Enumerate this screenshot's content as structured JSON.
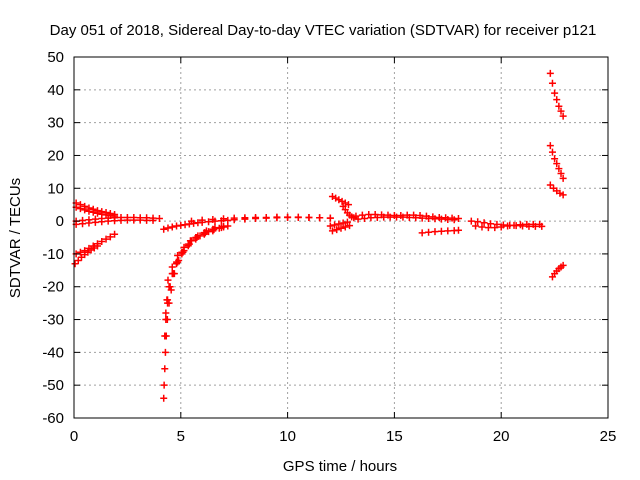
{
  "chart_data": {
    "type": "scatter",
    "title": "Day 051 of 2018, Sidereal Day-to-day VTEC variation (SDTVAR) for receiver p121",
    "xlabel": "GPS time / hours",
    "ylabel": "SDTVAR / TECUs",
    "xlim": [
      0,
      25
    ],
    "ylim": [
      -60,
      50
    ],
    "xticks": [
      0,
      5,
      10,
      15,
      20,
      25
    ],
    "yticks": [
      -60,
      -50,
      -40,
      -30,
      -20,
      -10,
      0,
      10,
      20,
      30,
      40,
      50
    ],
    "xtick_labels": [
      "0",
      "5",
      "10",
      "15",
      "20",
      "25"
    ],
    "ytick_labels": [
      "-60",
      "-50",
      "-40",
      "-30",
      "-20",
      "-10",
      "0",
      "10",
      "20",
      "30",
      "40",
      "50"
    ],
    "grid": true,
    "marker": "+",
    "color": "#ff0000",
    "series": [
      {
        "x": [
          0.1,
          0.3,
          0.5,
          0.7,
          0.9,
          1.1,
          1.3,
          1.5,
          1.7,
          1.9
        ],
        "y": [
          5.5,
          5,
          4.5,
          4,
          3.6,
          3.2,
          2.9,
          2.6,
          2.3,
          2
        ]
      },
      {
        "x": [
          0.1,
          0.3,
          0.5,
          0.7,
          0.9,
          1.1,
          1.3,
          1.5,
          1.7,
          1.9
        ],
        "y": [
          4.2,
          3.8,
          3.4,
          3,
          2.7,
          2.4,
          2.1,
          1.9,
          1.7,
          1.5
        ]
      },
      {
        "x": [
          0.1,
          0.4,
          0.7,
          1,
          1.3,
          1.6,
          1.9,
          2.2,
          2.5,
          2.8,
          3.1,
          3.4,
          3.7,
          4
        ],
        "y": [
          0,
          0.2,
          0.4,
          0.6,
          0.8,
          0.9,
          1,
          1.1,
          1.1,
          1.1,
          1,
          1,
          0.9,
          0.8
        ]
      },
      {
        "x": [
          0.1,
          0.4,
          0.7,
          1,
          1.3,
          1.6,
          1.9,
          2.2,
          2.5,
          2.8,
          3.1,
          3.4,
          3.7
        ],
        "y": [
          -1,
          -0.8,
          -0.6,
          -0.4,
          -0.2,
          0,
          0.1,
          0.2,
          0.3,
          0.3,
          0.3,
          0.2,
          0.2
        ]
      },
      {
        "x": [
          0.1,
          0.3,
          0.5,
          0.7,
          0.9,
          1.1,
          1.3,
          1.5,
          1.7,
          1.9
        ],
        "y": [
          -10,
          -9.5,
          -9,
          -8.3,
          -7.6,
          -6.9,
          -6.2,
          -5.5,
          -4.8,
          -4
        ]
      },
      {
        "x": [
          0.05,
          0.2,
          0.35,
          0.5,
          0.65,
          0.8,
          0.95,
          1.1
        ],
        "y": [
          -13,
          -12,
          -11,
          -10.2,
          -9.5,
          -8.8,
          -8.2,
          -7.6
        ]
      },
      {
        "x": [
          4.2,
          4.22,
          4.25,
          4.28,
          4.32,
          4.37,
          4.45,
          4.55,
          4.7,
          4.9,
          5.15,
          5.45,
          5.8,
          6.2,
          6.6
        ],
        "y": [
          -54,
          -50,
          -45,
          -40,
          -35,
          -30,
          -25,
          -21,
          -16,
          -12,
          -9,
          -6,
          -4.5,
          -3,
          -2
        ]
      },
      {
        "x": [
          4.25,
          4.3,
          4.38,
          4.48,
          4.62,
          4.8,
          5.05,
          5.35,
          5.7,
          6.1,
          6.5,
          6.9
        ],
        "y": [
          -35,
          -30,
          -25,
          -20,
          -16,
          -13,
          -10,
          -7.5,
          -5.5,
          -4,
          -3,
          -2
        ]
      },
      {
        "x": [
          4.3,
          4.38,
          4.5,
          4.65,
          4.85,
          5.1,
          5.4,
          5.75,
          6.15,
          6.55,
          7
        ],
        "y": [
          -28,
          -24,
          -20,
          -16,
          -12.5,
          -9.5,
          -7,
          -5,
          -3.6,
          -2.6,
          -1.8
        ]
      },
      {
        "x": [
          4.35,
          4.45,
          4.6,
          4.8,
          5.05,
          5.35,
          5.7,
          6.1,
          6.5,
          7
        ],
        "y": [
          -24,
          -20,
          -16,
          -12.5,
          -9.5,
          -7,
          -5,
          -3.5,
          -2.5,
          -1.6
        ]
      },
      {
        "x": [
          4.4,
          4.6,
          4.85,
          5.15,
          5.5,
          5.9,
          6.3,
          6.8,
          7.2
        ],
        "y": [
          -18,
          -14,
          -10.5,
          -8,
          -6,
          -4.5,
          -3.2,
          -2.2,
          -1.5
        ]
      },
      {
        "x": [
          4.2,
          4.4,
          4.6,
          4.8,
          5,
          5.2,
          5.4,
          5.6,
          5.8,
          6,
          6.3,
          6.6,
          6.9,
          7.2
        ],
        "y": [
          -2.5,
          -2.1,
          -1.8,
          -1.5,
          -1.3,
          -1.1,
          -0.9,
          -0.7,
          -0.5,
          -0.4,
          -0.2,
          0,
          0.1,
          0.2
        ]
      },
      {
        "x": [
          5.5,
          6,
          6.5,
          7,
          7.5,
          8,
          8.5,
          9,
          9.5,
          10,
          10.5,
          11,
          11.5,
          12
        ],
        "y": [
          0,
          0.3,
          0.5,
          0.7,
          0.9,
          1,
          1.1,
          1.1,
          1.2,
          1.2,
          1.2,
          1.1,
          1,
          0.9
        ]
      },
      {
        "x": [
          7.5,
          8,
          8.5,
          9,
          9.5,
          10,
          10.5,
          11,
          11.5,
          12
        ],
        "y": [
          0.4,
          0.6,
          0.8,
          0.9,
          1,
          1.1,
          1.1,
          1.1,
          1,
          0.9
        ]
      },
      {
        "x": [
          12.1,
          12.25,
          12.4,
          12.55,
          12.7,
          12.85
        ],
        "y": [
          7.5,
          7,
          6.5,
          6,
          5.5,
          5
        ]
      },
      {
        "x": [
          12.6,
          12.7,
          12.8,
          12.9,
          13,
          13.1
        ],
        "y": [
          4.5,
          3.5,
          2.5,
          1.8,
          1.3,
          1
        ]
      },
      {
        "x": [
          12.1,
          12.3,
          12.5,
          12.7,
          12.9
        ],
        "y": [
          -3,
          -2.6,
          -2.2,
          -1.8,
          -1.4
        ]
      },
      {
        "x": [
          12,
          12.2,
          12.4,
          12.6,
          12.8
        ],
        "y": [
          -1.5,
          -1.2,
          -0.9,
          -0.6,
          -0.3
        ]
      },
      {
        "x": [
          13.2,
          13.5,
          13.8,
          14.1,
          14.4,
          14.7,
          15,
          15.3,
          15.6,
          15.9,
          16.2,
          16.5,
          16.8,
          17.1,
          17.4,
          17.7,
          18
        ],
        "y": [
          1.5,
          1.8,
          2,
          2,
          1.9,
          1.8,
          1.7,
          1.7,
          1.8,
          1.8,
          1.7,
          1.5,
          1.3,
          1.1,
          1,
          0.9,
          0.8
        ]
      },
      {
        "x": [
          13.3,
          13.6,
          13.9,
          14.2,
          14.5,
          14.8,
          15.1,
          15.4,
          15.7,
          16,
          16.3,
          16.6,
          16.9,
          17.2,
          17.5,
          17.8
        ],
        "y": [
          0.6,
          0.8,
          1,
          1.1,
          1.2,
          1.2,
          1.2,
          1.2,
          1.1,
          1,
          0.9,
          0.8,
          0.7,
          0.6,
          0.5,
          0.4
        ]
      },
      {
        "x": [
          16.3,
          16.6,
          16.9,
          17.2,
          17.5,
          17.8,
          18
        ],
        "y": [
          -3.6,
          -3.4,
          -3.2,
          -3.1,
          -3,
          -2.9,
          -2.8
        ]
      },
      {
        "x": [
          18.6,
          18.9,
          19.2,
          19.5,
          19.8,
          20.1,
          20.4,
          20.7,
          21,
          21.3,
          21.6,
          21.9
        ],
        "y": [
          0,
          -0.2,
          -0.5,
          -0.8,
          -1,
          -1.2,
          -1.3,
          -1.4,
          -1.5,
          -1.6,
          -1.6,
          -1.6
        ]
      },
      {
        "x": [
          18.8,
          19.1,
          19.4,
          19.7,
          20,
          20.3,
          20.6,
          20.9,
          21.2,
          21.5,
          21.8
        ],
        "y": [
          -1.5,
          -1.8,
          -2,
          -2,
          -1.8,
          -1.5,
          -1.3,
          -1.1,
          -1,
          -1,
          -1
        ]
      },
      {
        "x": [
          22.3,
          22.4,
          22.5,
          22.6,
          22.7,
          22.8,
          22.9
        ],
        "y": [
          45,
          42,
          39,
          37,
          35,
          33.5,
          32
        ]
      },
      {
        "x": [
          22.3,
          22.4,
          22.5,
          22.6,
          22.7,
          22.8,
          22.9
        ],
        "y": [
          23,
          21,
          19,
          17.5,
          16,
          14.5,
          13
        ]
      },
      {
        "x": [
          22.3,
          22.45,
          22.6,
          22.75,
          22.9
        ],
        "y": [
          11,
          10,
          9.2,
          8.5,
          8
        ]
      },
      {
        "x": [
          22.4,
          22.5,
          22.6,
          22.7,
          22.8,
          22.9
        ],
        "y": [
          -17,
          -16,
          -15.2,
          -14.5,
          -14,
          -13.5
        ]
      }
    ]
  }
}
